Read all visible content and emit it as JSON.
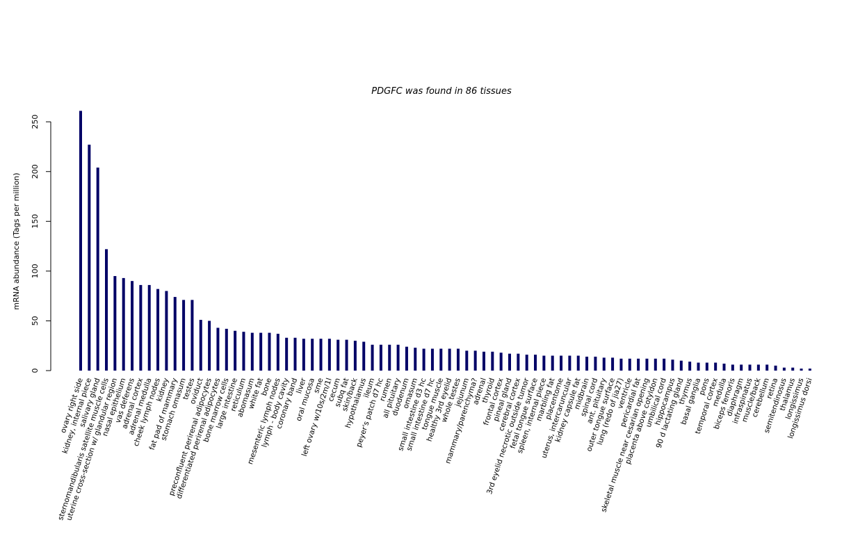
{
  "chart_data": {
    "type": "bar",
    "title": "PDGFC  was found in  86  tissues",
    "xlabel": "",
    "ylabel": "mRNA abundance (Tags per million)",
    "ylim": [
      0,
      262
    ],
    "yticks": [
      0,
      50,
      100,
      150,
      200,
      250
    ],
    "bar_color": "#000066",
    "grid": false,
    "categories": [
      "ovary right side",
      "kidney, internal piece",
      "salivary gland",
      "sternomandibularis satellite muscle cells",
      "uterine cross-section w/ glandular region",
      "nasal epithelium",
      "vas deferens",
      "adrenal cortex",
      "adrenal medulla",
      "cheek lymph nodes",
      "kidney",
      "fat pad of mammary",
      "stomach omasum",
      "testes",
      "oviduct",
      "preconfluent perirenal adipocytes",
      "differentiated perirenal adipocytes",
      "bone marrow cells",
      "large intestine",
      "reticulum",
      "abomasum",
      "white fat",
      "bone",
      "mesenteric lymph nodes",
      "lymph - body cavity",
      "coronary band",
      "liver",
      "oral mucosa",
      "sme",
      "left ovary w/10s/2m/1l",
      "cecum",
      "subq fat",
      "skin/back",
      "hypothalamus",
      "ileum",
      "peyer's patch d7 hc",
      "rumen",
      "all pituitary",
      "duodenum",
      "omasum",
      "small intestine d3 hc",
      "small intestine d7 hc",
      "tongue muscle",
      "healthy 3rd eyelid",
      "whole testes",
      "jejunum",
      "mammary/parenchyma?",
      "adrenal",
      "thyroid",
      "frontal cortex",
      "pineal gland",
      "cerebral cortex",
      "3rd eyelid necrotic outside tumor",
      "fetal tongue surface",
      "spleen, internal piece",
      "marbling fat",
      "placentome",
      "uterus, intercaruncular",
      "kidney capsule fat",
      "midbrain",
      "spinal cord",
      "ant. pituitary",
      "outer tongue surface",
      "lung (redo of jia27)",
      "ventricle",
      "pericardial fat",
      "skeletal muscle near cesarian opening",
      "placenta above cotyldon",
      "umbilical cord",
      "hippocampus",
      "90 d lactating gland",
      "thymus",
      "basal ganglia",
      "pons",
      "temporal cortex",
      "medulla",
      "biceps femoris",
      "diaphragm",
      "infraspinatus",
      "muscle/back",
      "cerebellum",
      "retina",
      "semitendinosus",
      "thalamus",
      "longissimus",
      "longissimus dorsi"
    ],
    "values": [
      261,
      227,
      204,
      122,
      95,
      93,
      90,
      86,
      86,
      82,
      80,
      74,
      71,
      71,
      51,
      50,
      43,
      42,
      40,
      39,
      38,
      38,
      38,
      37,
      33,
      33,
      32,
      32,
      32,
      32,
      31,
      31,
      30,
      29,
      26,
      26,
      26,
      26,
      24,
      23,
      22,
      22,
      22,
      22,
      22,
      20,
      20,
      19,
      19,
      18,
      17,
      17,
      16,
      16,
      15,
      15,
      15,
      15,
      15,
      14,
      14,
      13,
      13,
      12,
      12,
      12,
      12,
      12,
      12,
      11,
      10,
      9,
      8,
      8,
      8,
      7,
      6,
      6,
      6,
      6,
      6,
      5,
      3,
      3,
      2,
      2
    ]
  }
}
